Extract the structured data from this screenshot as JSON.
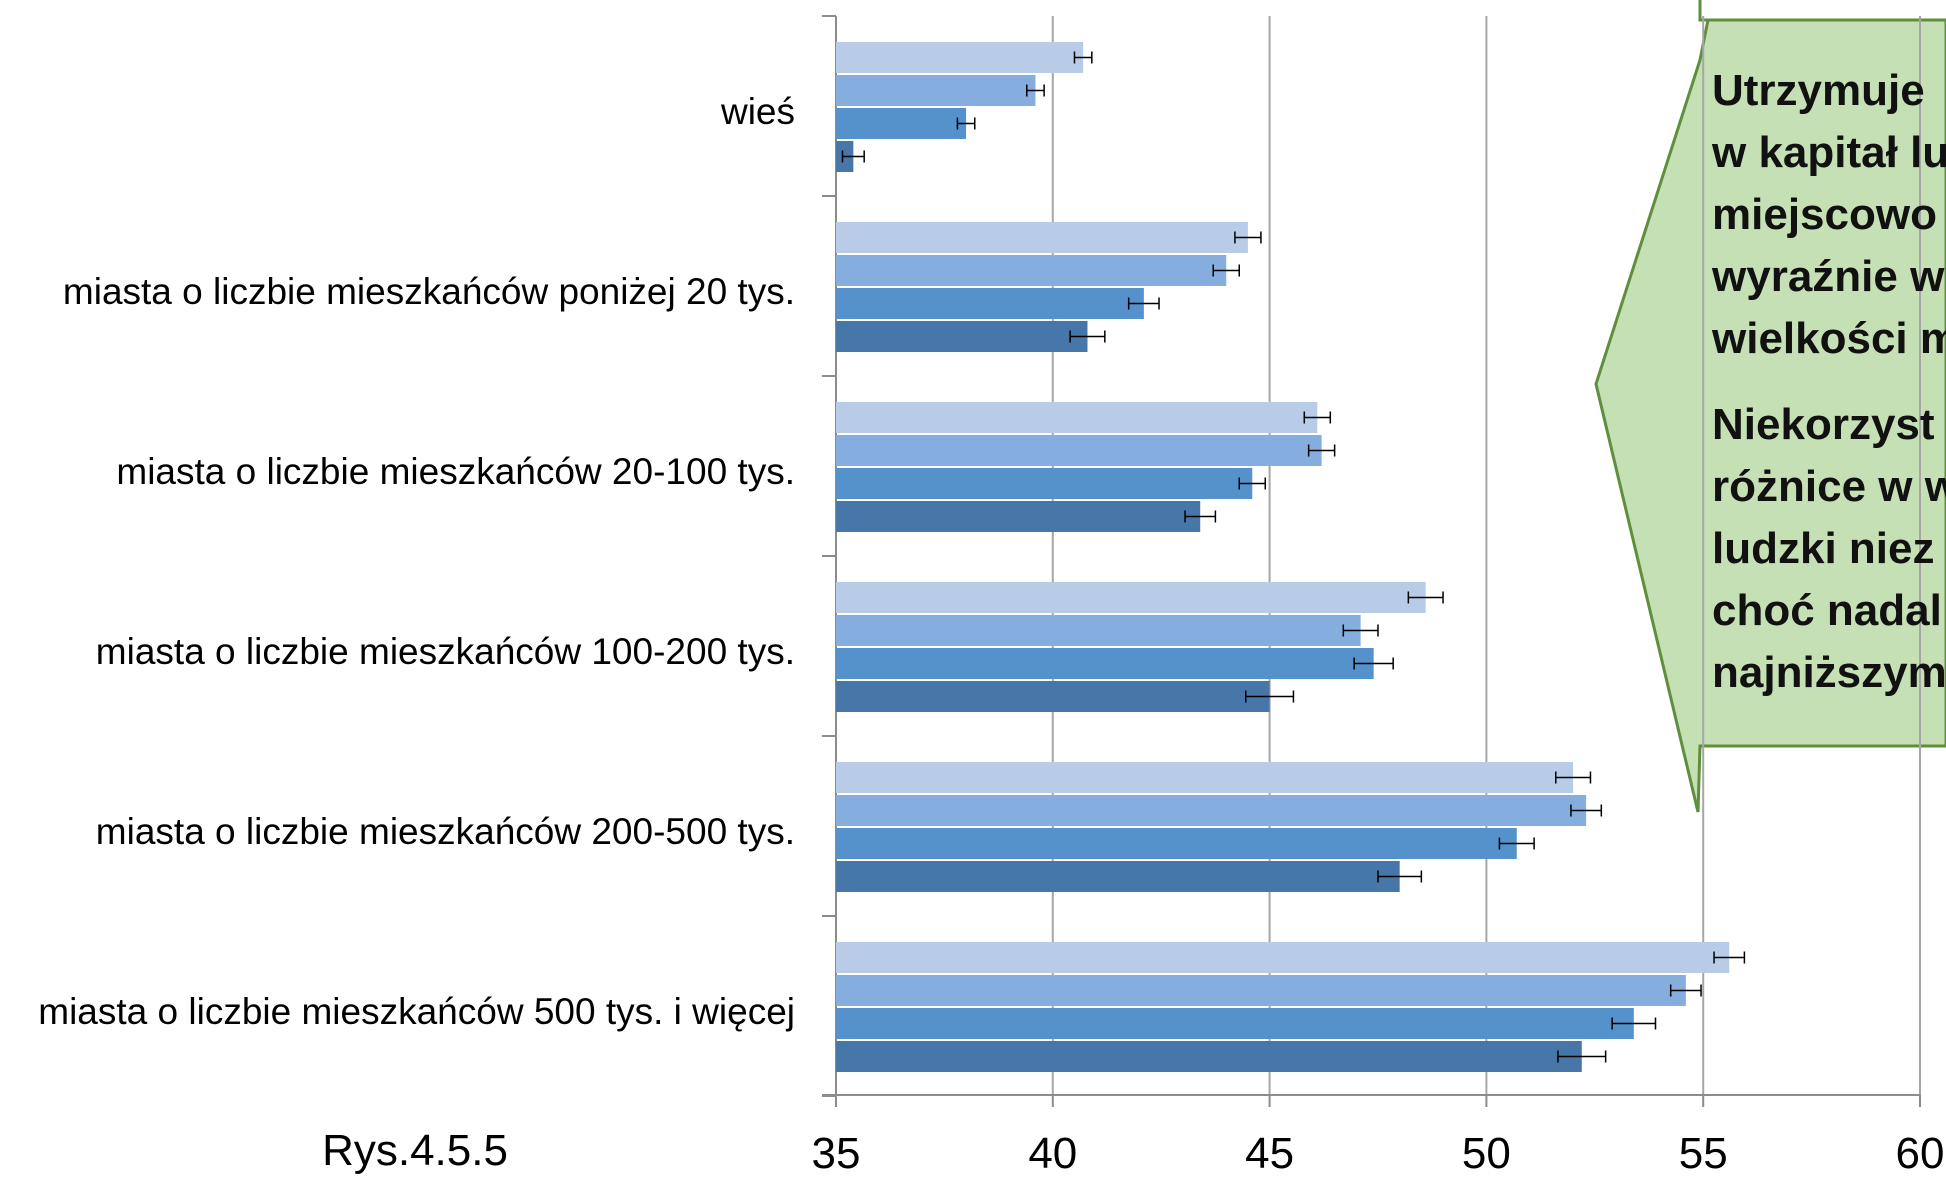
{
  "chart_data": {
    "type": "bar",
    "orientation": "horizontal",
    "categories": [
      "wieś",
      "miasta o liczbie mieszkańców poniżej 20 tys.",
      "miasta o liczbie mieszkańców 20-100 tys.",
      "miasta o liczbie mieszkańców 100-200 tys.",
      "miasta o liczbie mieszkańców 200-500 tys.",
      "miasta o liczbie mieszkańców 500 tys. i więcej"
    ],
    "series": [
      {
        "color": "#b8cce8",
        "values": [
          40.7,
          44.5,
          46.1,
          48.6,
          52.0,
          55.6
        ],
        "errors": [
          0.2,
          0.3,
          0.3,
          0.4,
          0.4,
          0.35
        ]
      },
      {
        "color": "#85aede",
        "values": [
          39.6,
          44.0,
          46.2,
          47.1,
          52.3,
          54.6
        ],
        "errors": [
          0.2,
          0.3,
          0.3,
          0.4,
          0.35,
          0.35
        ]
      },
      {
        "color": "#5591cb",
        "values": [
          38.0,
          42.1,
          44.6,
          47.4,
          50.7,
          53.4
        ],
        "errors": [
          0.2,
          0.35,
          0.3,
          0.45,
          0.4,
          0.5
        ]
      },
      {
        "color": "#4677a8",
        "values": [
          35.4,
          40.8,
          43.4,
          45.0,
          48.0,
          52.2
        ],
        "errors": [
          0.25,
          0.4,
          0.35,
          0.55,
          0.5,
          0.55
        ]
      }
    ],
    "xlim": [
      35,
      60
    ],
    "xticks": [
      "35",
      "40",
      "45",
      "50",
      "55",
      "60"
    ],
    "grid": "vertical",
    "title": "",
    "xlabel": "",
    "ylabel": ""
  },
  "figure_label": "Rys.4.5.5",
  "callout": {
    "fill": "#c5e0b4",
    "stroke": "#5f8f3c",
    "paragraphs": [
      [
        "Utrzymuje",
        "w kapitał lu",
        "miejscowo",
        "wyraźnie w",
        "wielkości m"
      ],
      [
        "Niekorzyst",
        "różnice w w",
        "ludzki niez",
        "choć nadal",
        "najniższym"
      ]
    ]
  }
}
